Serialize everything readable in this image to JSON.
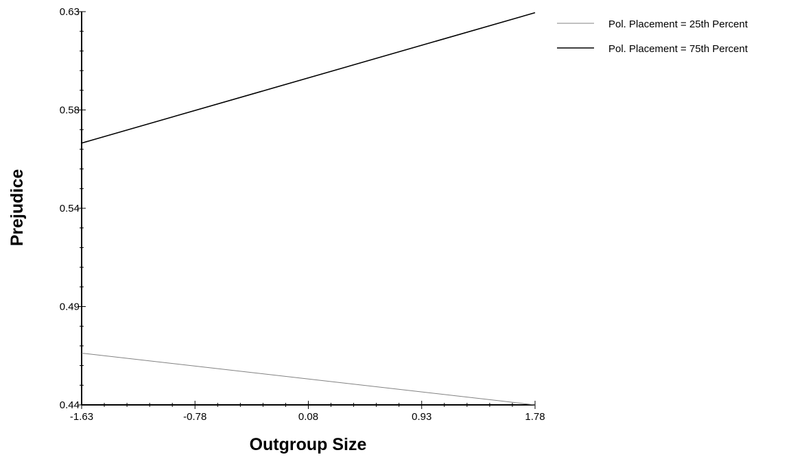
{
  "chart_data": {
    "type": "line",
    "title": "",
    "xlabel": "Outgroup Size",
    "ylabel": "Prejudice",
    "xlim": [
      -1.63,
      1.78
    ],
    "ylim": [
      0.44,
      0.63
    ],
    "x_tick_labels": [
      "-1.63",
      "-0.78",
      "0.08",
      "0.93",
      "1.78"
    ],
    "y_tick_labels": [
      "0.44",
      "0.49",
      "0.54",
      "0.58",
      "0.63"
    ],
    "grid": false,
    "legend_position": "top-right",
    "series": [
      {
        "name": "Pol. Placement = 25th Percent",
        "color": "#808080",
        "x": [
          -1.63,
          1.78
        ],
        "y": [
          0.465,
          0.44
        ]
      },
      {
        "name": "Pol. Placement = 75th Percent",
        "color": "#000000",
        "x": [
          -1.63,
          1.78
        ],
        "y": [
          0.5665,
          0.6295
        ]
      }
    ]
  }
}
